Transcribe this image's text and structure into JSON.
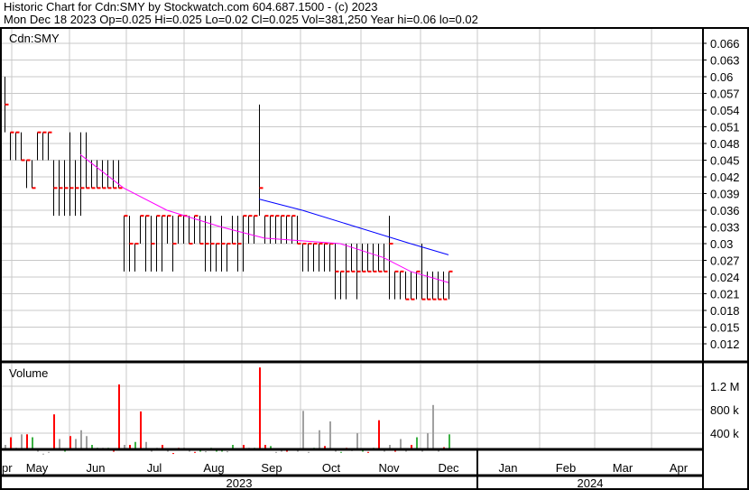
{
  "header": {
    "title": "Historic Chart for Cdn:SMY by Stockwatch.com 604.687.1500 - (c) 2023",
    "stats": "Mon Dec 18 2023  Op=0.025  Hi=0.025  Lo=0.02  Cl=0.025  Vol=381,250  Year hi=0.06  lo=0.02"
  },
  "chart_data": {
    "type": "ohlc-bar",
    "price_label": "Cdn:SMY",
    "volume_label": "Volume",
    "price_ticks": [
      "0.066",
      "0.063",
      "0.06",
      "0.057",
      "0.054",
      "0.051",
      "0.048",
      "0.045",
      "0.042",
      "0.039",
      "0.036",
      "0.033",
      "0.03",
      "0.027",
      "0.024",
      "0.021",
      "0.018",
      "0.015",
      "0.012"
    ],
    "ylim": [
      0.0105,
      0.0675
    ],
    "volume_ticks": [
      "1.2 M",
      "800 k",
      "400 k"
    ],
    "month_labels": [
      "pr",
      "May",
      "Jun",
      "Jul",
      "Aug",
      "Sep",
      "Oct",
      "Nov",
      "Dec",
      "Jan",
      "Feb",
      "Mar",
      "Apr"
    ],
    "years": [
      "2023",
      "2024"
    ],
    "high": [
      60,
      50,
      50,
      50,
      45,
      45,
      50,
      50,
      50,
      45,
      45,
      45,
      50,
      45,
      50,
      50,
      45,
      45,
      45,
      45,
      45,
      45,
      35,
      35,
      30,
      35,
      35,
      35,
      35,
      35,
      35,
      35,
      35,
      35,
      35,
      35,
      35,
      35,
      35,
      30,
      35,
      30,
      35,
      35,
      35,
      35,
      35,
      55,
      35,
      35,
      35,
      35,
      35,
      35,
      35,
      30,
      30,
      30,
      30,
      30,
      30,
      30,
      25,
      30,
      30,
      30,
      30,
      30,
      30,
      30,
      30,
      35,
      25,
      25,
      25,
      25,
      25,
      30,
      25,
      25,
      25,
      25,
      25
    ],
    "low": [
      50,
      45,
      45,
      45,
      40,
      40,
      45,
      45,
      45,
      35,
      35,
      35,
      35,
      35,
      35,
      40,
      40,
      40,
      40,
      40,
      40,
      40,
      25,
      25,
      25,
      30,
      25,
      25,
      25,
      25,
      30,
      25,
      30,
      30,
      30,
      30,
      30,
      25,
      25,
      25,
      25,
      25,
      30,
      25,
      25,
      30,
      30,
      35,
      30,
      30,
      30,
      30,
      30,
      30,
      30,
      25,
      25,
      25,
      25,
      25,
      25,
      20,
      20,
      20,
      25,
      20,
      25,
      25,
      25,
      25,
      25,
      20,
      20,
      20,
      20,
      20,
      20,
      20,
      20,
      20,
      20,
      20,
      20
    ],
    "close": [
      55,
      50,
      50,
      45,
      45,
      40,
      50,
      50,
      50,
      40,
      40,
      40,
      40,
      40,
      40,
      40,
      40,
      40,
      40,
      40,
      40,
      40,
      35,
      30,
      30,
      35,
      35,
      30,
      35,
      35,
      35,
      30,
      35,
      35,
      30,
      35,
      30,
      30,
      30,
      30,
      30,
      30,
      30,
      30,
      35,
      35,
      35,
      40,
      35,
      35,
      35,
      35,
      35,
      35,
      30,
      30,
      30,
      30,
      30,
      30,
      30,
      25,
      25,
      25,
      25,
      25,
      25,
      25,
      25,
      25,
      25,
      30,
      25,
      25,
      20,
      20,
      25,
      20,
      20,
      20,
      20,
      20,
      25
    ],
    "price_unit": "thousandths",
    "ma_short": [
      [
        14,
        46
      ],
      [
        22,
        40
      ],
      [
        30,
        36
      ],
      [
        40,
        33
      ],
      [
        48,
        31
      ],
      [
        55,
        30.5
      ],
      [
        62,
        30
      ],
      [
        70,
        27.5
      ],
      [
        75,
        25
      ],
      [
        82,
        23
      ]
    ],
    "ma_long": [
      [
        47,
        38
      ],
      [
        55,
        36
      ],
      [
        65,
        33
      ],
      [
        75,
        30
      ],
      [
        82,
        28
      ]
    ],
    "volume_k": [
      200,
      330,
      150,
      380,
      380,
      330,
      100,
      50,
      80,
      720,
      300,
      100,
      350,
      300,
      450,
      350,
      200,
      150,
      150,
      150,
      100,
      1230,
      200,
      200,
      250,
      770,
      250,
      100,
      150,
      200,
      100,
      60,
      150,
      150,
      100,
      80,
      100,
      90,
      150,
      100,
      100,
      90,
      200,
      120,
      200,
      150,
      150,
      1520,
      200,
      180,
      80,
      100,
      100,
      130,
      100,
      780,
      80,
      150,
      450,
      180,
      600,
      100,
      80,
      150,
      110,
      400,
      100,
      80,
      150,
      620,
      100,
      200,
      100,
      300,
      100,
      200,
      330,
      100,
      400,
      880,
      100,
      160,
      380
    ],
    "volume_color": "nrnnrgnnnrngrnnnggngrrnrgrnnnrnrrnnrgngggnggrngrrgnnrgnnngnrnngrnngrgrnnrnnrgnnnnrg",
    "colors": {
      "up": "#3cb043",
      "down": "#ff0000",
      "neutral": "#a0a0a0",
      "ma_short": "#ff00ff",
      "ma_long": "#0000ff",
      "close_tick": "#ff0000"
    }
  }
}
